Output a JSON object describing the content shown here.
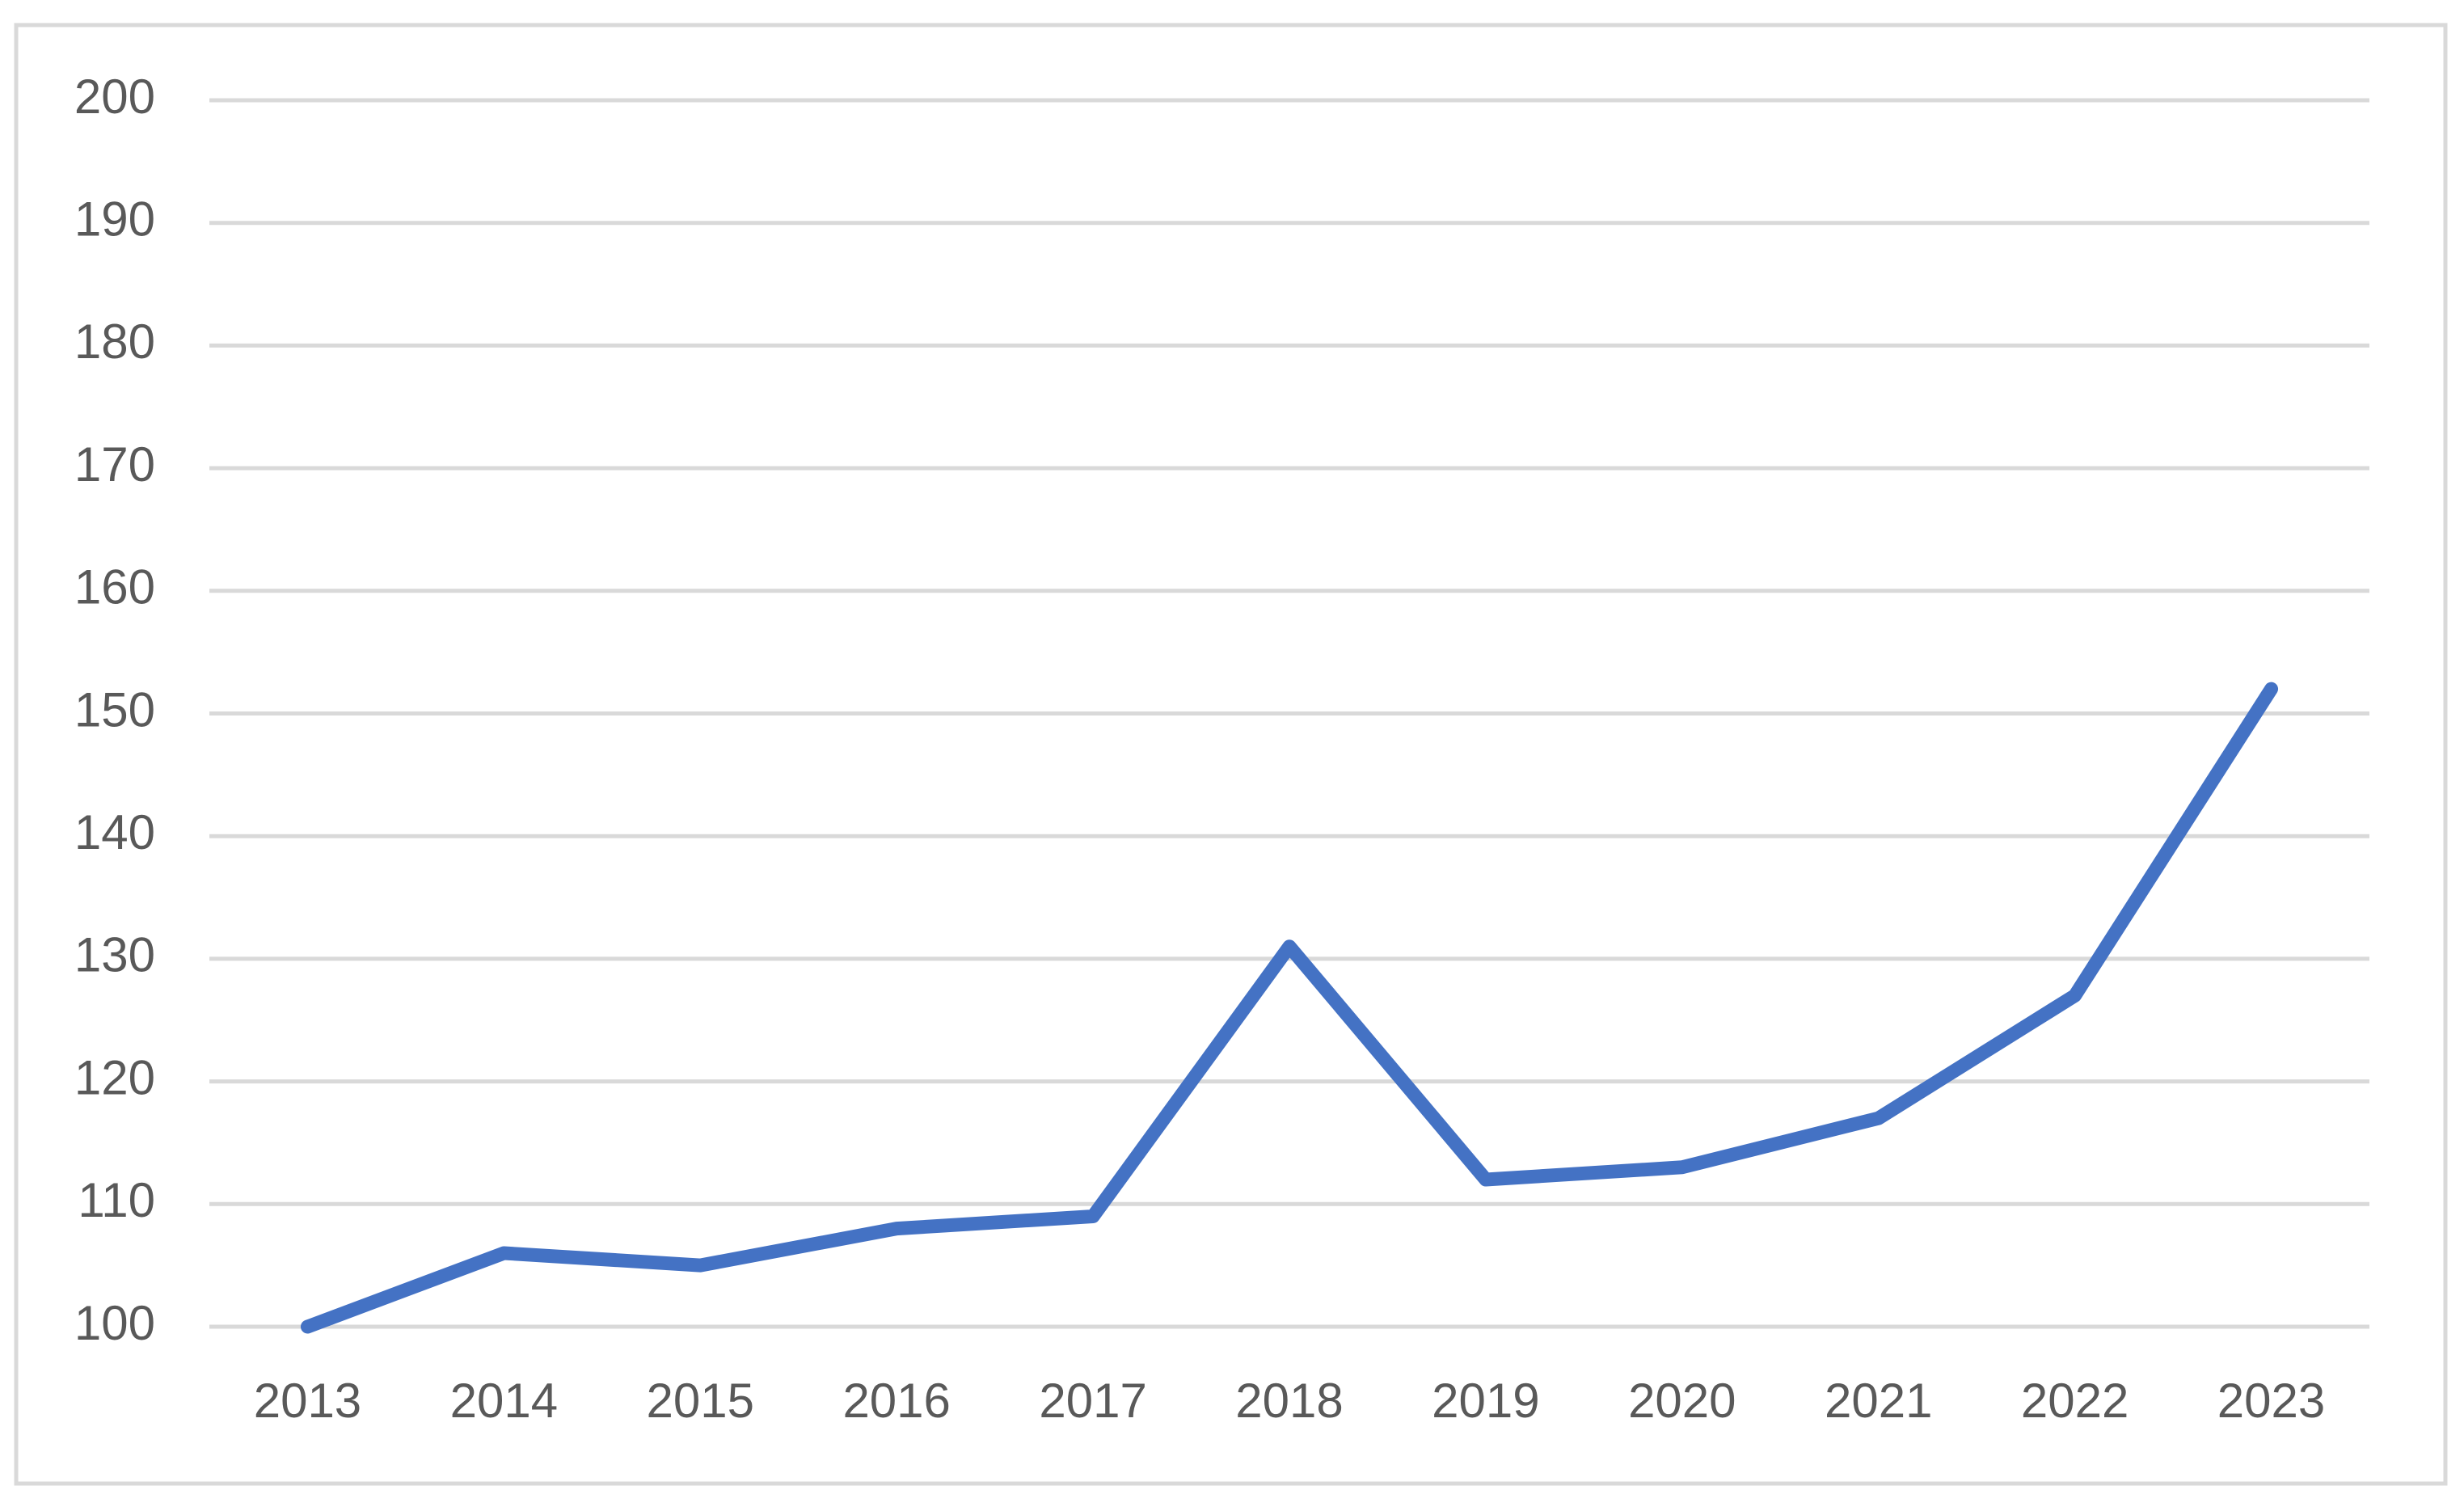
{
  "chart_data": {
    "type": "line",
    "categories": [
      "2013",
      "2014",
      "2015",
      "2016",
      "2017",
      "2018",
      "2019",
      "2020",
      "2021",
      "2022",
      "2023"
    ],
    "values": [
      100,
      106,
      105,
      108,
      109,
      131,
      112,
      113,
      117,
      127,
      152
    ],
    "color": "#4472c4",
    "ylim": [
      100,
      200
    ],
    "yticks": [
      100,
      110,
      120,
      130,
      140,
      150,
      160,
      170,
      180,
      190,
      200
    ],
    "grid": true
  }
}
